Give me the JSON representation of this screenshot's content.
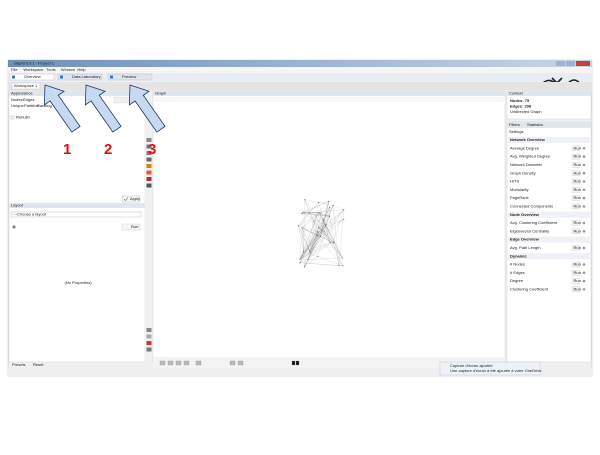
{
  "window": {
    "title": "Gephi 0.9.1 - Project 1",
    "menu": [
      "File",
      "Workspace",
      "Tools",
      "Window",
      "Help"
    ],
    "tabs": [
      "Overview",
      "Data Laboratory",
      "Preview"
    ],
    "workspace": "Workspace 1"
  },
  "appearance": {
    "title": "Appearance",
    "tabs": [
      "Nodes",
      "Edges"
    ],
    "modes": [
      "Unique",
      "Partition",
      "Ranking"
    ],
    "option": "Rebuild",
    "apply": "Apply"
  },
  "layout": {
    "title": "Layout",
    "choose": "---Choose a layout",
    "run": "Run",
    "empty": "(No Properties)"
  },
  "graph": {
    "title": "Graph"
  },
  "context": {
    "title": "Context",
    "lines": [
      "Nodes: 75",
      "Edges: 298",
      "Undirected Graph"
    ]
  },
  "statistics": {
    "tabs": [
      "Filters",
      "Statistics"
    ],
    "settings": "Settings",
    "run": "Run",
    "sections": [
      {
        "title": "Network Overview",
        "items": [
          "Average Degree",
          "Avg. Weighted Degree",
          "Network Diameter",
          "Graph Density",
          "HITS",
          "Modularity",
          "PageRank",
          "Connected Components"
        ]
      },
      {
        "title": "Node Overview",
        "items": [
          "Avg. Clustering Coefficient",
          "Eigenvector Centrality"
        ]
      },
      {
        "title": "Edge Overview",
        "items": [
          "Avg. Path Length"
        ]
      },
      {
        "title": "Dynamic",
        "items": [
          "# Nodes",
          "# Edges",
          "Degree",
          "Clustering Coefficient"
        ]
      }
    ]
  },
  "bottom": {
    "presets": "Presets",
    "reset": "Reset"
  },
  "notification": {
    "title": "Capture d'écran ajoutée",
    "text": "Une capture d'écran a été ajoutée à votre OneDrive."
  },
  "annotations": [
    "1",
    "2",
    "3"
  ]
}
